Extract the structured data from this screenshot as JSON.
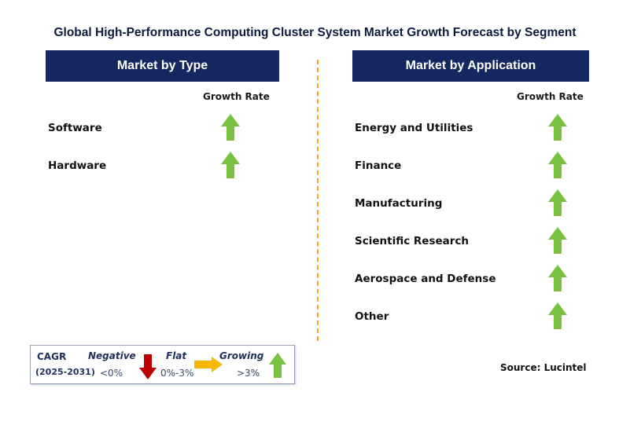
{
  "title": "Global High-Performance Computing Cluster System Market Growth Forecast by Segment",
  "chart_data": {
    "type": "table",
    "panels": [
      {
        "header": "Market by Type",
        "column_header": "Growth Rate",
        "rows": [
          {
            "label": "Software",
            "trend": "growing"
          },
          {
            "label": "Hardware",
            "trend": "growing"
          }
        ]
      },
      {
        "header": "Market by Application",
        "column_header": "Growth Rate",
        "rows": [
          {
            "label": "Energy and Utilities",
            "trend": "growing"
          },
          {
            "label": "Finance",
            "trend": "growing"
          },
          {
            "label": "Manufacturing",
            "trend": "growing"
          },
          {
            "label": "Scientific Research",
            "trend": "growing"
          },
          {
            "label": "Aerospace and Defense",
            "trend": "growing"
          },
          {
            "label": "Other",
            "trend": "growing"
          }
        ]
      }
    ]
  },
  "legend": {
    "cagr_label": "CAGR",
    "period": "(2025-2031)",
    "negative": {
      "label": "Negative",
      "range": "<0%",
      "color": "#c00000",
      "icon": "down-arrow-icon"
    },
    "flat": {
      "label": "Flat",
      "range": "0%-3%",
      "color": "#f5b800",
      "icon": "right-arrow-icon"
    },
    "growing": {
      "label": "Growing",
      "range": ">3%",
      "color": "#7ac143",
      "icon": "up-arrow-icon"
    }
  },
  "source": "Source: Lucintel",
  "colors": {
    "header_bg": "#142760",
    "divider": "#f5a623",
    "growing": "#7ac143"
  }
}
